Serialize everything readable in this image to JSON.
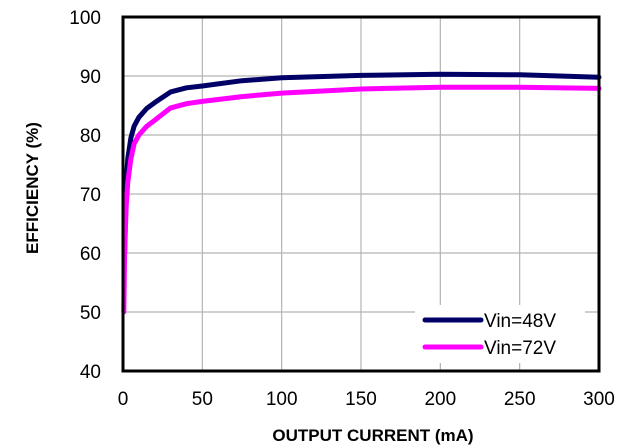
{
  "chart_data": {
    "type": "line",
    "title": "",
    "xlabel": "OUTPUT  CURRENT  (mA)",
    "ylabel": "EFFICIENCY  (%)",
    "xlim": [
      0,
      300
    ],
    "ylim": [
      40,
      100
    ],
    "xticks": [
      0,
      50,
      100,
      150,
      200,
      250,
      300
    ],
    "yticks": [
      40,
      50,
      60,
      70,
      80,
      90,
      100
    ],
    "grid": true,
    "legend_position": "bottom-right",
    "series": [
      {
        "name": "Vin=48V",
        "color": "#000066",
        "x": [
          1,
          2,
          3,
          5,
          7,
          10,
          15,
          20,
          30,
          40,
          50,
          75,
          100,
          150,
          200,
          250,
          300
        ],
        "y": [
          60,
          72,
          76,
          79.5,
          81.5,
          83,
          84.5,
          85.5,
          87.3,
          88,
          88.3,
          89.2,
          89.7,
          90.1,
          90.3,
          90.2,
          89.8
        ]
      },
      {
        "name": "Vin=72V",
        "color": "#ff00ff",
        "x": [
          0.5,
          1,
          2,
          3,
          5,
          7,
          10,
          15,
          20,
          30,
          40,
          50,
          75,
          100,
          150,
          200,
          250,
          300
        ],
        "y": [
          50,
          60,
          68,
          72,
          76,
          78.5,
          80,
          81.5,
          82.5,
          84.6,
          85.3,
          85.7,
          86.5,
          87.1,
          87.8,
          88.1,
          88.1,
          87.9
        ]
      }
    ]
  }
}
